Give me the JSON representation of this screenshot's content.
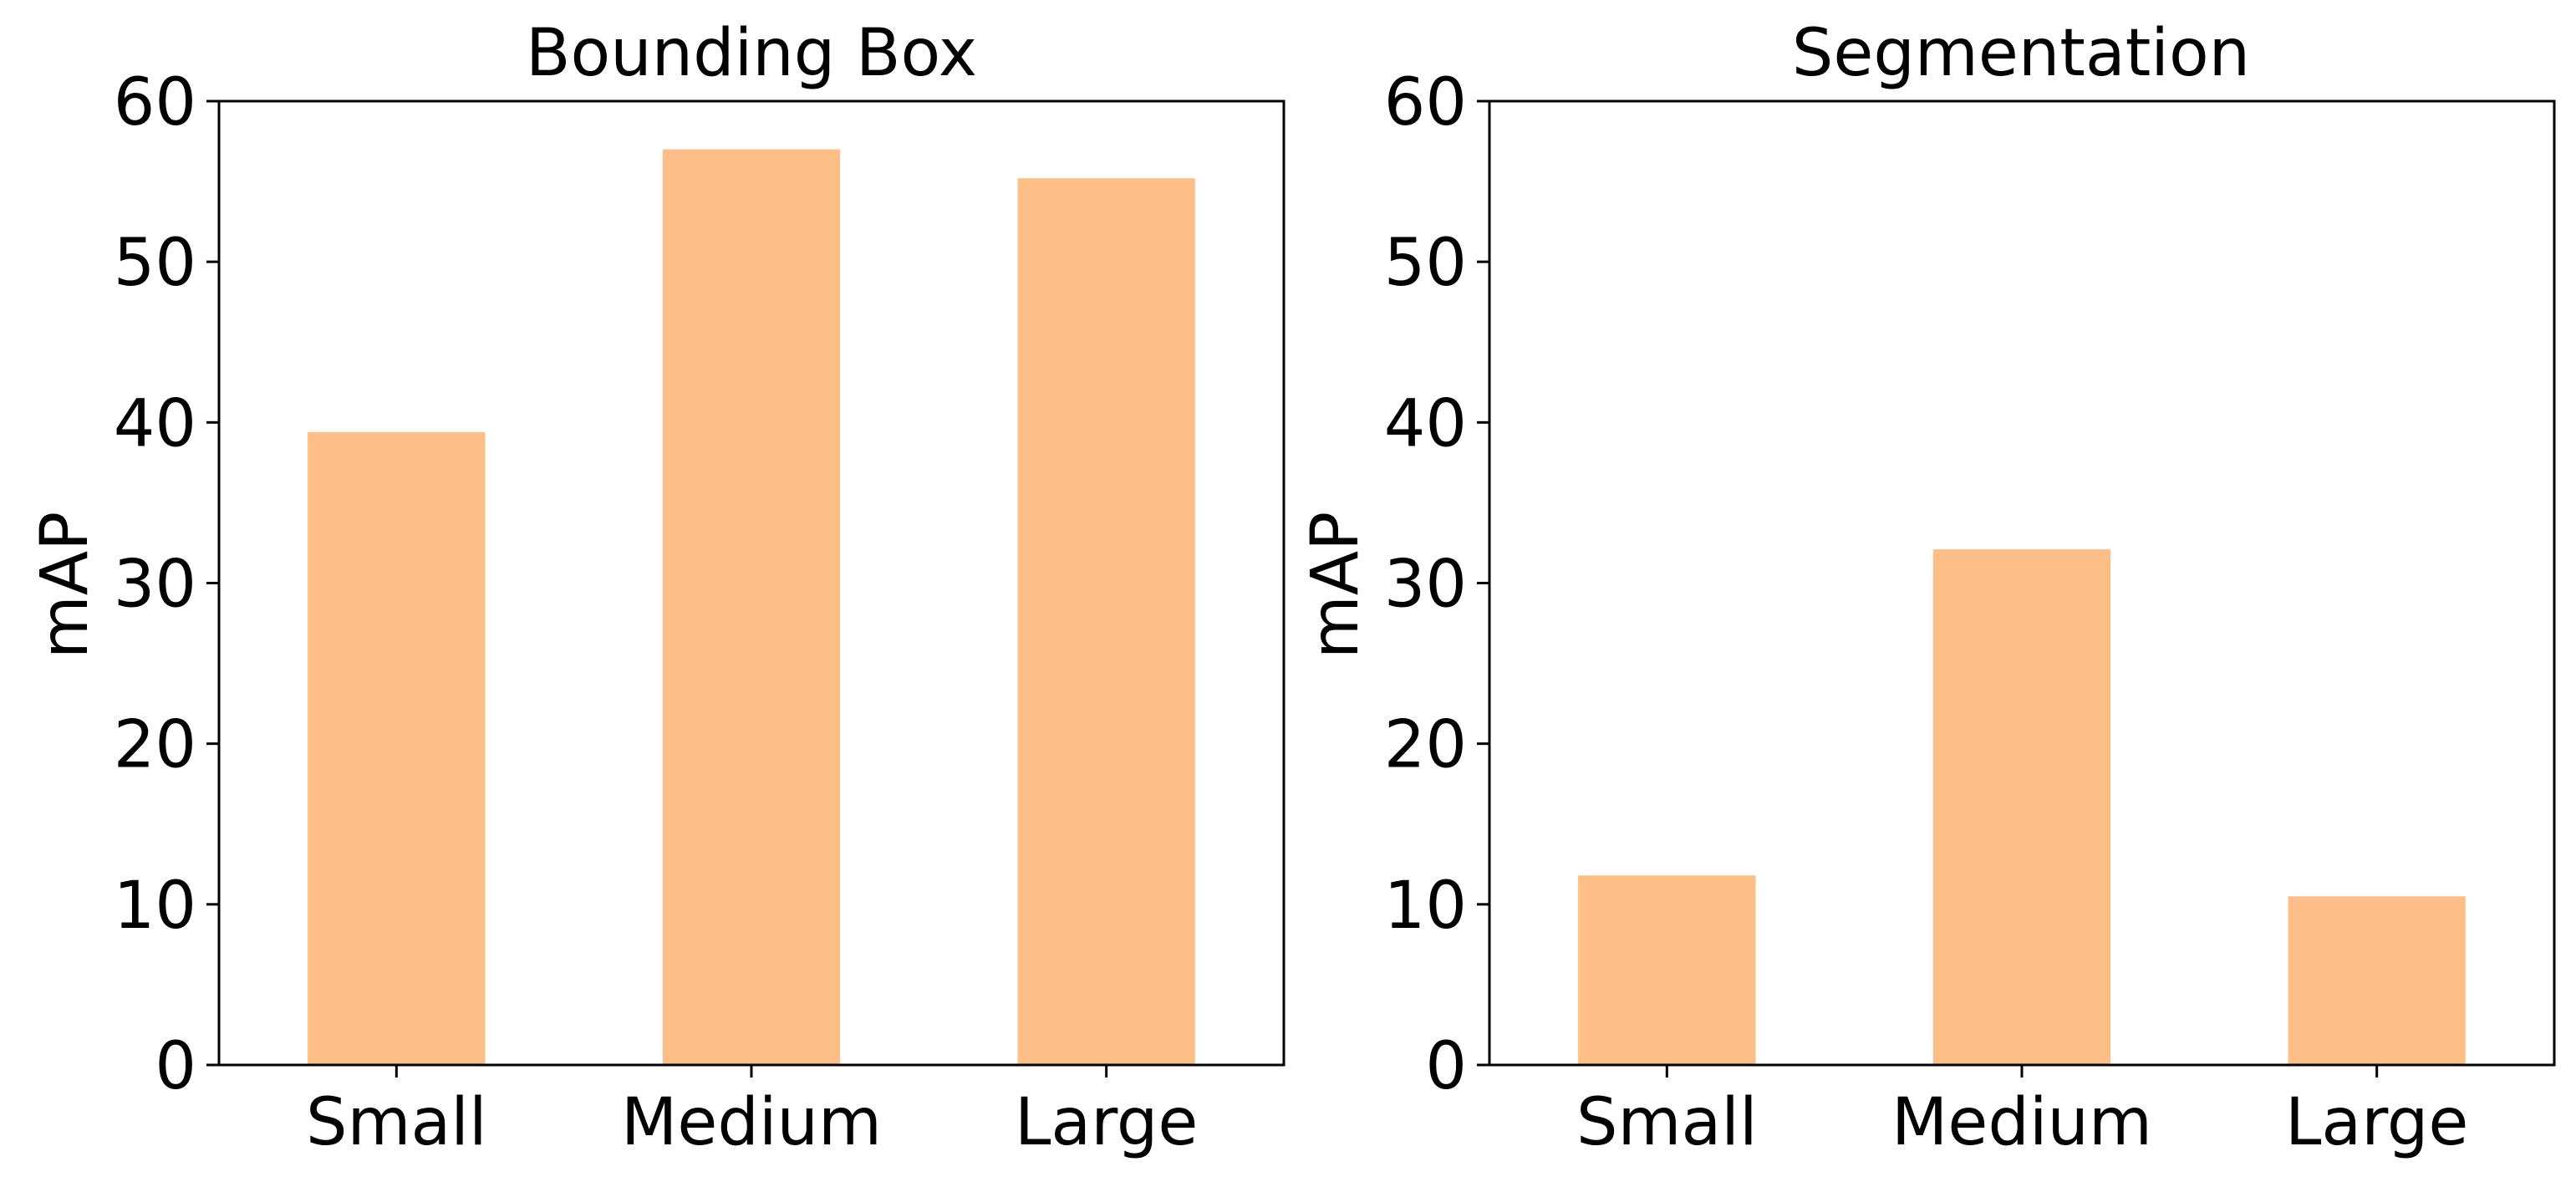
{
  "chart_data": [
    {
      "type": "bar",
      "title": "Bounding Box",
      "ylabel": "mAP",
      "xlabel": "",
      "categories": [
        "Small",
        "Medium",
        "Large"
      ],
      "values": [
        39.4,
        57.0,
        55.2
      ],
      "ylim": [
        0,
        60
      ],
      "yticks": [
        "0",
        "10",
        "20",
        "30",
        "40",
        "50",
        "60"
      ],
      "grid": false,
      "bar_color": "#FDBF87"
    },
    {
      "type": "bar",
      "title": "Segmentation",
      "ylabel": "mAP",
      "xlabel": "",
      "categories": [
        "Small",
        "Medium",
        "Large"
      ],
      "values": [
        11.8,
        32.1,
        10.5
      ],
      "ylim": [
        0,
        60
      ],
      "yticks": [
        "0",
        "10",
        "20",
        "30",
        "40",
        "50",
        "60"
      ],
      "grid": false,
      "bar_color": "#FDBF87"
    }
  ]
}
